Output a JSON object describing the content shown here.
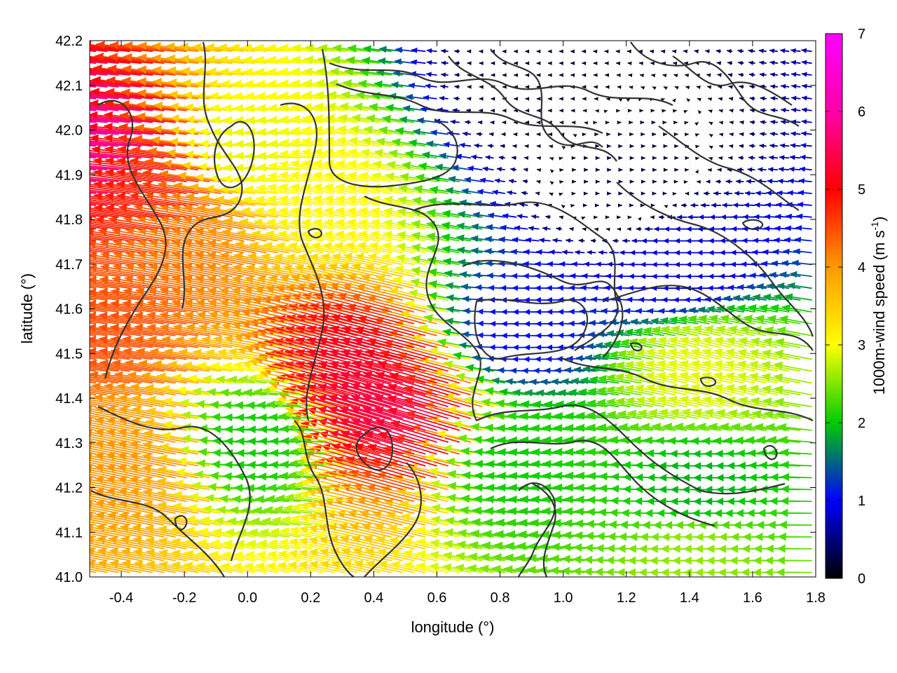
{
  "chart_data": {
    "type": "vector-field",
    "xlabel": "longitude (°)",
    "ylabel": "latitude (°)",
    "xlim": [
      -0.5,
      1.8
    ],
    "ylim": [
      41.0,
      42.2
    ],
    "x_ticks": [
      "-0.4",
      "-0.2",
      "0.0",
      "0.2",
      "0.4",
      "0.6",
      "0.8",
      "1.0",
      "1.2",
      "1.4",
      "1.6",
      "1.8"
    ],
    "x_tick_values": [
      -0.4,
      -0.2,
      0.0,
      0.2,
      0.4,
      0.6,
      0.8,
      1.0,
      1.2,
      1.4,
      1.6,
      1.8
    ],
    "y_ticks": [
      "41.0",
      "41.1",
      "41.2",
      "41.3",
      "41.4",
      "41.5",
      "41.6",
      "41.7",
      "41.8",
      "41.9",
      "42.0",
      "42.1",
      "42.2"
    ],
    "y_tick_values": [
      41.0,
      41.1,
      41.2,
      41.3,
      41.4,
      41.5,
      41.6,
      41.7,
      41.8,
      41.9,
      42.0,
      42.1,
      42.2
    ],
    "grid": true,
    "colorbar": {
      "label_main": "1000m-wind speed (m s",
      "label_sup": "-1",
      "label_end": ")",
      "ticks": [
        "0",
        "1",
        "2",
        "3",
        "4",
        "5",
        "6",
        "7"
      ],
      "tick_values": [
        0,
        1,
        2,
        3,
        4,
        5,
        6,
        7
      ],
      "range": [
        0,
        7
      ],
      "palette": [
        "#000000",
        "#0000ff",
        "#00cc00",
        "#ffff00",
        "#ff9900",
        "#ff0000",
        "#ff00ff"
      ]
    },
    "wind_field_description": "Easterly/west-blowing wind vectors; strongest (5-7 m/s, red-magenta) in the west near -0.5 to 0.6 lon, 41.4-42.0 lat; weak (0-1.5 m/s, black-blue) in the northeast near 0.6-1.6 lon, 41.6-42.2 lat; moderate (2-3 m/s, green-yellow) in the southeast.",
    "wind_samples": [
      {
        "lon": -0.45,
        "lat": 41.95,
        "u": -6.5,
        "v": 0.6
      },
      {
        "lon": -0.25,
        "lat": 41.85,
        "u": -5.6,
        "v": 0.8
      },
      {
        "lon": -0.35,
        "lat": 41.55,
        "u": -5.2,
        "v": 0.7
      },
      {
        "lon": -0.1,
        "lat": 41.75,
        "u": -4.8,
        "v": 0.9
      },
      {
        "lon": 0.1,
        "lat": 41.95,
        "u": -3.4,
        "v": 0.2
      },
      {
        "lon": 0.3,
        "lat": 41.85,
        "u": -3.5,
        "v": 0.6
      },
      {
        "lon": 0.45,
        "lat": 41.45,
        "u": -5.8,
        "v": 1.6
      },
      {
        "lon": 0.55,
        "lat": 41.35,
        "u": -5.9,
        "v": 1.8
      },
      {
        "lon": -0.3,
        "lat": 41.25,
        "u": -4.6,
        "v": 0.9
      },
      {
        "lon": 0.1,
        "lat": 41.3,
        "u": -2.4,
        "v": 0.1
      },
      {
        "lon": 0.9,
        "lat": 42.1,
        "u": -0.2,
        "v": 0.0
      },
      {
        "lon": 1.2,
        "lat": 41.9,
        "u": 0.3,
        "v": 0.0
      },
      {
        "lon": 1.4,
        "lat": 41.7,
        "u": -1.0,
        "v": 0.0
      },
      {
        "lon": 0.9,
        "lat": 41.55,
        "u": -1.2,
        "v": 0.0
      },
      {
        "lon": 1.5,
        "lat": 41.2,
        "u": -2.2,
        "v": 0.0
      },
      {
        "lon": 1.5,
        "lat": 41.05,
        "u": -3.0,
        "v": 0.0
      },
      {
        "lon": 1.5,
        "lat": 41.45,
        "u": -3.3,
        "v": 0.7
      },
      {
        "lon": 0.9,
        "lat": 41.25,
        "u": -2.4,
        "v": 0.2
      }
    ]
  }
}
